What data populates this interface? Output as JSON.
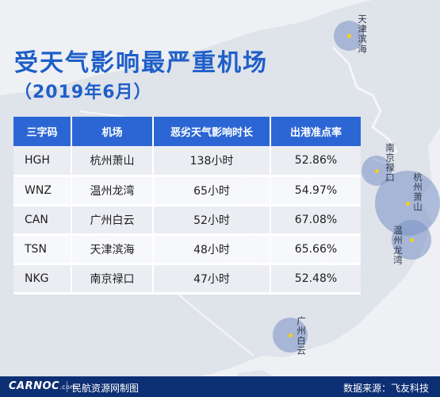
{
  "title": "受天气影响最严重机场",
  "subtitle": "（2019年6月）",
  "table": {
    "headers": [
      "三字码",
      "机场",
      "恶劣天气影响时长",
      "出港准点率"
    ],
    "rows": [
      [
        "HGH",
        "杭州萧山",
        "138小时",
        "52.86%"
      ],
      [
        "WNZ",
        "温州龙湾",
        "65小时",
        "54.97%"
      ],
      [
        "CAN",
        "广州白云",
        "52小时",
        "67.08%"
      ],
      [
        "TSN",
        "天津滨海",
        "48小时",
        "65.66%"
      ],
      [
        "NKG",
        "南京禄口",
        "47小时",
        "52.48%"
      ]
    ]
  },
  "map_labels": {
    "tsn": "天津滨海",
    "nkg": "南京禄口",
    "hgh": "杭州萧山",
    "wnz": "温州龙湾",
    "can": "广州白云"
  },
  "footer": {
    "brand": "CARNOC",
    "brand_suffix": ".com",
    "left_text": "民航资源网制图",
    "right_text": "数据来源：飞友科技"
  },
  "colors": {
    "accent": "#1f5fc9",
    "header_bg": "#2c66d4",
    "footer_bg": "#0d2f74",
    "bubble": "#7892c4",
    "airport_dot": "#f3d21a"
  }
}
